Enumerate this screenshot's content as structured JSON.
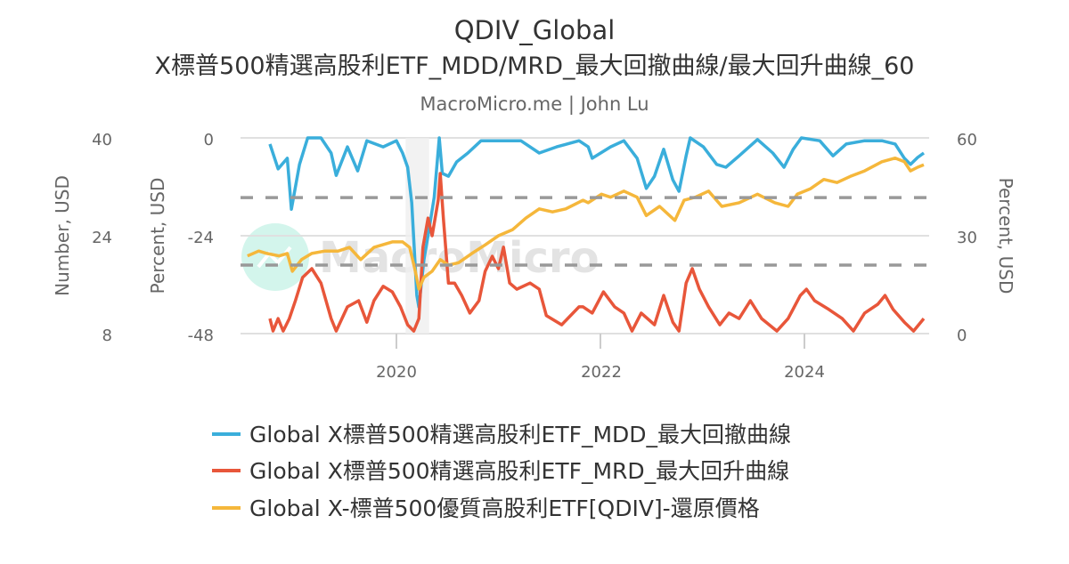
{
  "chart_data": {
    "type": "line",
    "title": "QDIV_Global",
    "subtitle": "X標普500精選高股利ETF_MDD/MRD_最大回撤曲線/最大回升曲線_60",
    "credit": "MacroMicro.me | John Lu",
    "watermark": "MacroMicro",
    "x_ticks": [
      "2020",
      "2022",
      "2024"
    ],
    "xlim": [
      2018.5,
      2025.2
    ],
    "axes": {
      "left_outer": {
        "label": "Number, USD",
        "ticks": [
          "8",
          "24",
          "40"
        ],
        "range": [
          8,
          40
        ]
      },
      "left_inner": {
        "label": "Percent, USD",
        "ticks": [
          "-48",
          "-24",
          "0"
        ],
        "range": [
          -48,
          0
        ]
      },
      "right": {
        "label": "Percent, USD",
        "ticks": [
          "0",
          "30",
          "60"
        ],
        "range": [
          0,
          60
        ]
      }
    },
    "grid": true,
    "legend_position": "bottom",
    "recession_shading": [
      2020.09,
      2020.32
    ],
    "reference_lines": {
      "axis": "right",
      "values": [
        41.7,
        21.0
      ],
      "color": "#999999"
    },
    "series": [
      {
        "name": "Global X標普500精選高股利ETF_MDD_最大回撤曲線",
        "color": "#3aaedb",
        "axis": "left_inner",
        "points": [
          [
            2018.76,
            -1.5
          ],
          [
            2018.84,
            -7.6
          ],
          [
            2018.93,
            -5.0
          ],
          [
            2018.97,
            -17.5
          ],
          [
            2019.05,
            -6.5
          ],
          [
            2019.13,
            0
          ],
          [
            2019.26,
            0
          ],
          [
            2019.36,
            -3.7
          ],
          [
            2019.41,
            -9.2
          ],
          [
            2019.52,
            -2.2
          ],
          [
            2019.62,
            -8.1
          ],
          [
            2019.71,
            -0.7
          ],
          [
            2019.87,
            -2.2
          ],
          [
            2020.0,
            -0.7
          ],
          [
            2020.06,
            -3.7
          ],
          [
            2020.11,
            -7.2
          ],
          [
            2020.15,
            -15.9
          ],
          [
            2020.2,
            -38.6
          ],
          [
            2020.22,
            -41.5
          ],
          [
            2020.27,
            -29.9
          ],
          [
            2020.32,
            -22.5
          ],
          [
            2020.37,
            -14.6
          ],
          [
            2020.42,
            0
          ],
          [
            2020.45,
            -8.7
          ],
          [
            2020.51,
            -9.4
          ],
          [
            2020.59,
            -5.9
          ],
          [
            2020.7,
            -3.7
          ],
          [
            2020.83,
            -0.7
          ],
          [
            2021.0,
            -0.7
          ],
          [
            2021.22,
            -0.7
          ],
          [
            2021.4,
            -3.7
          ],
          [
            2021.57,
            -2.2
          ],
          [
            2021.79,
            -0.7
          ],
          [
            2021.88,
            -2.2
          ],
          [
            2021.92,
            -5.0
          ],
          [
            2022.1,
            -2.2
          ],
          [
            2022.23,
            -0.7
          ],
          [
            2022.36,
            -5.0
          ],
          [
            2022.45,
            -12.4
          ],
          [
            2022.53,
            -9.4
          ],
          [
            2022.62,
            -2.8
          ],
          [
            2022.71,
            -10.3
          ],
          [
            2022.77,
            -13.1
          ],
          [
            2022.84,
            -4.4
          ],
          [
            2022.88,
            0
          ],
          [
            2023.01,
            -2.2
          ],
          [
            2023.14,
            -6.5
          ],
          [
            2023.23,
            -7.2
          ],
          [
            2023.36,
            -4.4
          ],
          [
            2023.54,
            -0.4
          ],
          [
            2023.69,
            -3.7
          ],
          [
            2023.8,
            -7.2
          ],
          [
            2023.89,
            -2.8
          ],
          [
            2023.97,
            0
          ],
          [
            2024.15,
            -0.7
          ],
          [
            2024.28,
            -4.4
          ],
          [
            2024.41,
            -1.5
          ],
          [
            2024.59,
            -0.7
          ],
          [
            2024.76,
            -0.7
          ],
          [
            2024.89,
            -1.5
          ],
          [
            2024.98,
            -5.0
          ],
          [
            2025.04,
            -6.5
          ],
          [
            2025.11,
            -4.8
          ],
          [
            2025.17,
            -3.7
          ]
        ]
      },
      {
        "name": "Global X標普500精選高股利ETF_MRD_最大回升曲線",
        "color": "#e8563a",
        "axis": "right",
        "points": [
          [
            2018.76,
            4.6
          ],
          [
            2018.79,
            0.8
          ],
          [
            2018.84,
            4.6
          ],
          [
            2018.89,
            0.8
          ],
          [
            2018.95,
            4.6
          ],
          [
            2019.01,
            10.1
          ],
          [
            2019.08,
            17.2
          ],
          [
            2019.17,
            19.9
          ],
          [
            2019.26,
            15.5
          ],
          [
            2019.36,
            4.6
          ],
          [
            2019.41,
            0.8
          ],
          [
            2019.52,
            8.2
          ],
          [
            2019.63,
            10.1
          ],
          [
            2019.71,
            3.5
          ],
          [
            2019.78,
            10.1
          ],
          [
            2019.87,
            14.5
          ],
          [
            2019.96,
            12.8
          ],
          [
            2020.04,
            8.2
          ],
          [
            2020.11,
            2.7
          ],
          [
            2020.17,
            0.8
          ],
          [
            2020.22,
            4.6
          ],
          [
            2020.26,
            26.5
          ],
          [
            2020.31,
            35.4
          ],
          [
            2020.35,
            30.0
          ],
          [
            2020.41,
            40.9
          ],
          [
            2020.43,
            49.1
          ],
          [
            2020.46,
            35.4
          ],
          [
            2020.51,
            15.5
          ],
          [
            2020.57,
            15.5
          ],
          [
            2020.64,
            11.7
          ],
          [
            2020.72,
            6.3
          ],
          [
            2020.81,
            10.1
          ],
          [
            2020.87,
            19.1
          ],
          [
            2020.94,
            23.7
          ],
          [
            2021.0,
            19.9
          ],
          [
            2021.05,
            26.5
          ],
          [
            2021.11,
            15.5
          ],
          [
            2021.18,
            13.6
          ],
          [
            2021.31,
            15.5
          ],
          [
            2021.4,
            13.6
          ],
          [
            2021.47,
            5.5
          ],
          [
            2021.62,
            2.7
          ],
          [
            2021.79,
            8.2
          ],
          [
            2021.83,
            8.2
          ],
          [
            2021.92,
            6.3
          ],
          [
            2022.03,
            12.8
          ],
          [
            2022.14,
            8.2
          ],
          [
            2022.23,
            6.3
          ],
          [
            2022.31,
            0.8
          ],
          [
            2022.4,
            6.3
          ],
          [
            2022.53,
            2.7
          ],
          [
            2022.62,
            11.7
          ],
          [
            2022.71,
            3.5
          ],
          [
            2022.77,
            0.8
          ],
          [
            2022.84,
            15.5
          ],
          [
            2022.9,
            19.9
          ],
          [
            2022.97,
            13.6
          ],
          [
            2023.06,
            8.2
          ],
          [
            2023.17,
            2.7
          ],
          [
            2023.26,
            6.3
          ],
          [
            2023.36,
            4.6
          ],
          [
            2023.47,
            10.1
          ],
          [
            2023.58,
            4.6
          ],
          [
            2023.73,
            0.8
          ],
          [
            2023.84,
            4.6
          ],
          [
            2023.96,
            11.7
          ],
          [
            2024.02,
            13.6
          ],
          [
            2024.1,
            10.1
          ],
          [
            2024.24,
            7.4
          ],
          [
            2024.37,
            4.6
          ],
          [
            2024.48,
            0.8
          ],
          [
            2024.59,
            6.3
          ],
          [
            2024.72,
            9.0
          ],
          [
            2024.79,
            11.7
          ],
          [
            2024.87,
            7.4
          ],
          [
            2024.98,
            3.5
          ],
          [
            2025.07,
            0.8
          ],
          [
            2025.17,
            4.6
          ]
        ]
      },
      {
        "name": "Global X-標普500優質高股利ETF[QDIV]-還原價格",
        "color": "#f5b73b",
        "axis": "left_outer",
        "points": [
          [
            2018.54,
            20.7
          ],
          [
            2018.65,
            21.5
          ],
          [
            2018.73,
            21.1
          ],
          [
            2018.85,
            20.7
          ],
          [
            2018.93,
            21.1
          ],
          [
            2018.98,
            18.2
          ],
          [
            2019.07,
            20.1
          ],
          [
            2019.17,
            21.1
          ],
          [
            2019.3,
            21.5
          ],
          [
            2019.43,
            21.5
          ],
          [
            2019.54,
            22.1
          ],
          [
            2019.65,
            20.1
          ],
          [
            2019.78,
            22.1
          ],
          [
            2019.96,
            23.0
          ],
          [
            2020.06,
            23.0
          ],
          [
            2020.13,
            22.1
          ],
          [
            2020.18,
            18.6
          ],
          [
            2020.22,
            15.3
          ],
          [
            2020.27,
            17.2
          ],
          [
            2020.35,
            18.2
          ],
          [
            2020.43,
            20.1
          ],
          [
            2020.51,
            19.2
          ],
          [
            2020.61,
            19.6
          ],
          [
            2020.74,
            21.1
          ],
          [
            2020.87,
            22.5
          ],
          [
            2021.0,
            24.0
          ],
          [
            2021.14,
            25.0
          ],
          [
            2021.27,
            26.9
          ],
          [
            2021.4,
            28.4
          ],
          [
            2021.53,
            27.9
          ],
          [
            2021.66,
            28.4
          ],
          [
            2021.83,
            29.8
          ],
          [
            2021.88,
            29.4
          ],
          [
            2022.01,
            30.8
          ],
          [
            2022.1,
            30.3
          ],
          [
            2022.23,
            31.3
          ],
          [
            2022.36,
            30.3
          ],
          [
            2022.45,
            27.3
          ],
          [
            2022.58,
            28.8
          ],
          [
            2022.73,
            26.5
          ],
          [
            2022.82,
            29.8
          ],
          [
            2022.93,
            30.3
          ],
          [
            2023.06,
            31.3
          ],
          [
            2023.19,
            28.8
          ],
          [
            2023.36,
            29.4
          ],
          [
            2023.54,
            30.8
          ],
          [
            2023.71,
            29.4
          ],
          [
            2023.84,
            28.8
          ],
          [
            2023.93,
            30.8
          ],
          [
            2024.06,
            31.7
          ],
          [
            2024.19,
            33.2
          ],
          [
            2024.32,
            32.7
          ],
          [
            2024.45,
            33.7
          ],
          [
            2024.59,
            34.6
          ],
          [
            2024.76,
            36.1
          ],
          [
            2024.89,
            36.7
          ],
          [
            2024.98,
            36.1
          ],
          [
            2025.04,
            34.6
          ],
          [
            2025.11,
            35.2
          ],
          [
            2025.17,
            35.6
          ]
        ]
      }
    ]
  }
}
